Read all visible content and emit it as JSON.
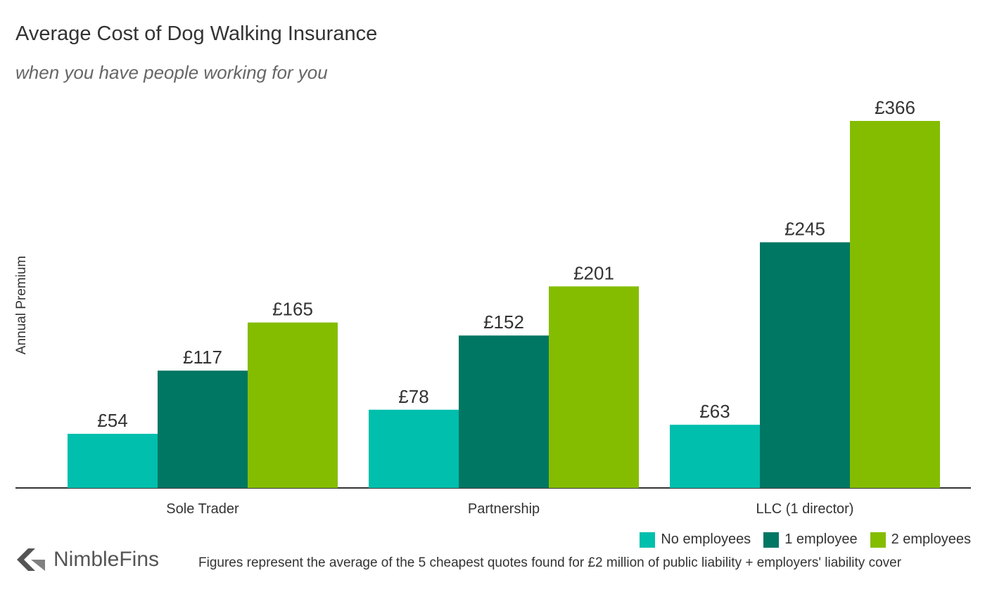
{
  "header": {
    "title": "Average Cost of Dog Walking Insurance",
    "subtitle": "when you have people working for you"
  },
  "footer": {
    "logo_text": "NimbleFins",
    "footnote": "Figures represent the average of the 5 cheapest quotes found for £2 million of public liability + employers' liability cover"
  },
  "chart_data": {
    "type": "bar",
    "title": "Average Cost of Dog Walking Insurance",
    "subtitle": "when you have people working for you",
    "xlabel": "",
    "ylabel": "Annual Premium",
    "categories": [
      "Sole Trader",
      "Partnership",
      "LLC (1 director)"
    ],
    "series": [
      {
        "name": "No employees",
        "values": [
          54,
          78,
          63
        ],
        "labels": [
          "£54",
          "£78",
          "£63"
        ],
        "color": "#00bfad"
      },
      {
        "name": "1 employee",
        "values": [
          117,
          152,
          245
        ],
        "labels": [
          "£117",
          "£152",
          "£245"
        ],
        "color": "#007763"
      },
      {
        "name": "2 employees",
        "values": [
          165,
          201,
          366
        ],
        "labels": [
          "£165",
          "£201",
          "£366"
        ],
        "color": "#84bd00"
      }
    ],
    "ylim": [
      0,
      366
    ],
    "grid": false,
    "legend": "bottom-right",
    "data_labels": true
  }
}
